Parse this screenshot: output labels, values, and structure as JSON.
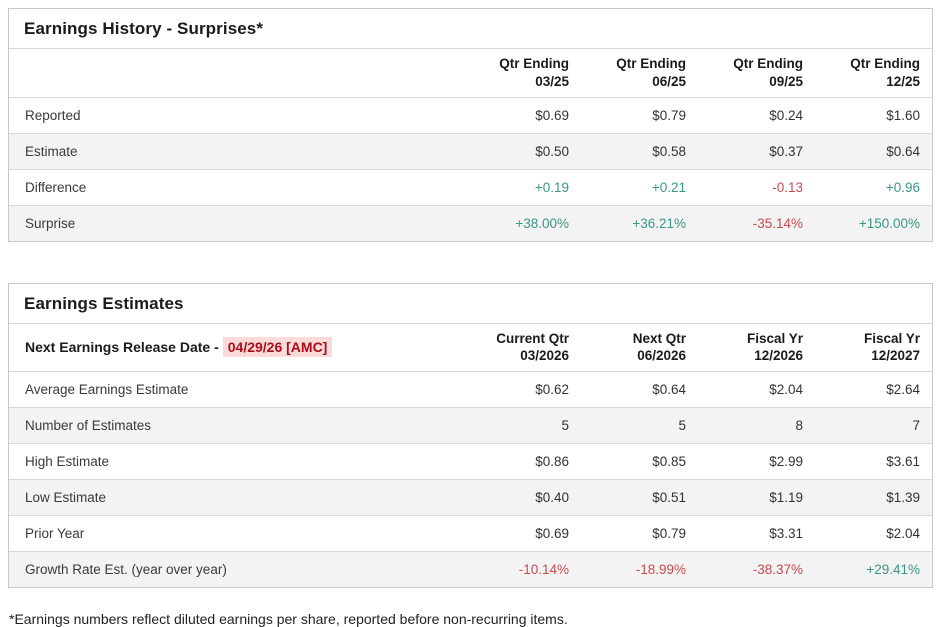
{
  "colors": {
    "positive": "#3a9688",
    "negative": "#c84a50",
    "date_text": "#ab0d16",
    "date_background": "#fbdada"
  },
  "history_table": {
    "title": "Earnings History - Surprises*",
    "columns": [
      {
        "line1": "Qtr Ending",
        "line2": "03/25"
      },
      {
        "line1": "Qtr Ending",
        "line2": "06/25"
      },
      {
        "line1": "Qtr Ending",
        "line2": "09/25"
      },
      {
        "line1": "Qtr Ending",
        "line2": "12/25"
      }
    ],
    "rows": [
      {
        "label": "Reported",
        "cells": [
          {
            "text": "$0.69",
            "tone": "default"
          },
          {
            "text": "$0.79",
            "tone": "default"
          },
          {
            "text": "$0.24",
            "tone": "default"
          },
          {
            "text": "$1.60",
            "tone": "default"
          }
        ]
      },
      {
        "label": "Estimate",
        "cells": [
          {
            "text": "$0.50",
            "tone": "default"
          },
          {
            "text": "$0.58",
            "tone": "default"
          },
          {
            "text": "$0.37",
            "tone": "default"
          },
          {
            "text": "$0.64",
            "tone": "default"
          }
        ]
      },
      {
        "label": "Difference",
        "cells": [
          {
            "text": "+0.19",
            "tone": "pos"
          },
          {
            "text": "+0.21",
            "tone": "pos"
          },
          {
            "text": "-0.13",
            "tone": "neg"
          },
          {
            "text": "+0.96",
            "tone": "pos"
          }
        ]
      },
      {
        "label": "Surprise",
        "cells": [
          {
            "text": "+38.00%",
            "tone": "pos"
          },
          {
            "text": "+36.21%",
            "tone": "pos"
          },
          {
            "text": "-35.14%",
            "tone": "neg"
          },
          {
            "text": "+150.00%",
            "tone": "pos"
          }
        ]
      }
    ]
  },
  "estimates_table": {
    "title": "Earnings Estimates",
    "release_label": "Next Earnings Release Date -",
    "release_date": "04/29/26 [AMC]",
    "columns": [
      {
        "line1": "Current Qtr",
        "line2": "03/2026"
      },
      {
        "line1": "Next Qtr",
        "line2": "06/2026"
      },
      {
        "line1": "Fiscal Yr",
        "line2": "12/2026"
      },
      {
        "line1": "Fiscal Yr",
        "line2": "12/2027"
      }
    ],
    "rows": [
      {
        "label": "Average Earnings Estimate",
        "cells": [
          {
            "text": "$0.62",
            "tone": "default"
          },
          {
            "text": "$0.64",
            "tone": "default"
          },
          {
            "text": "$2.04",
            "tone": "default"
          },
          {
            "text": "$2.64",
            "tone": "default"
          }
        ]
      },
      {
        "label": "Number of Estimates",
        "cells": [
          {
            "text": "5",
            "tone": "default"
          },
          {
            "text": "5",
            "tone": "default"
          },
          {
            "text": "8",
            "tone": "default"
          },
          {
            "text": "7",
            "tone": "default"
          }
        ]
      },
      {
        "label": "High Estimate",
        "cells": [
          {
            "text": "$0.86",
            "tone": "default"
          },
          {
            "text": "$0.85",
            "tone": "default"
          },
          {
            "text": "$2.99",
            "tone": "default"
          },
          {
            "text": "$3.61",
            "tone": "default"
          }
        ]
      },
      {
        "label": "Low Estimate",
        "cells": [
          {
            "text": "$0.40",
            "tone": "default"
          },
          {
            "text": "$0.51",
            "tone": "default"
          },
          {
            "text": "$1.19",
            "tone": "default"
          },
          {
            "text": "$1.39",
            "tone": "default"
          }
        ]
      },
      {
        "label": "Prior Year",
        "cells": [
          {
            "text": "$0.69",
            "tone": "default"
          },
          {
            "text": "$0.79",
            "tone": "default"
          },
          {
            "text": "$3.31",
            "tone": "default"
          },
          {
            "text": "$2.04",
            "tone": "default"
          }
        ]
      },
      {
        "label": "Growth Rate Est. (year over year)",
        "cells": [
          {
            "text": "-10.14%",
            "tone": "neg"
          },
          {
            "text": "-18.99%",
            "tone": "neg"
          },
          {
            "text": "-38.37%",
            "tone": "neg"
          },
          {
            "text": "+29.41%",
            "tone": "pos"
          }
        ]
      }
    ]
  },
  "footnote": "*Earnings numbers reflect diluted earnings per share, reported before non-recurring items."
}
